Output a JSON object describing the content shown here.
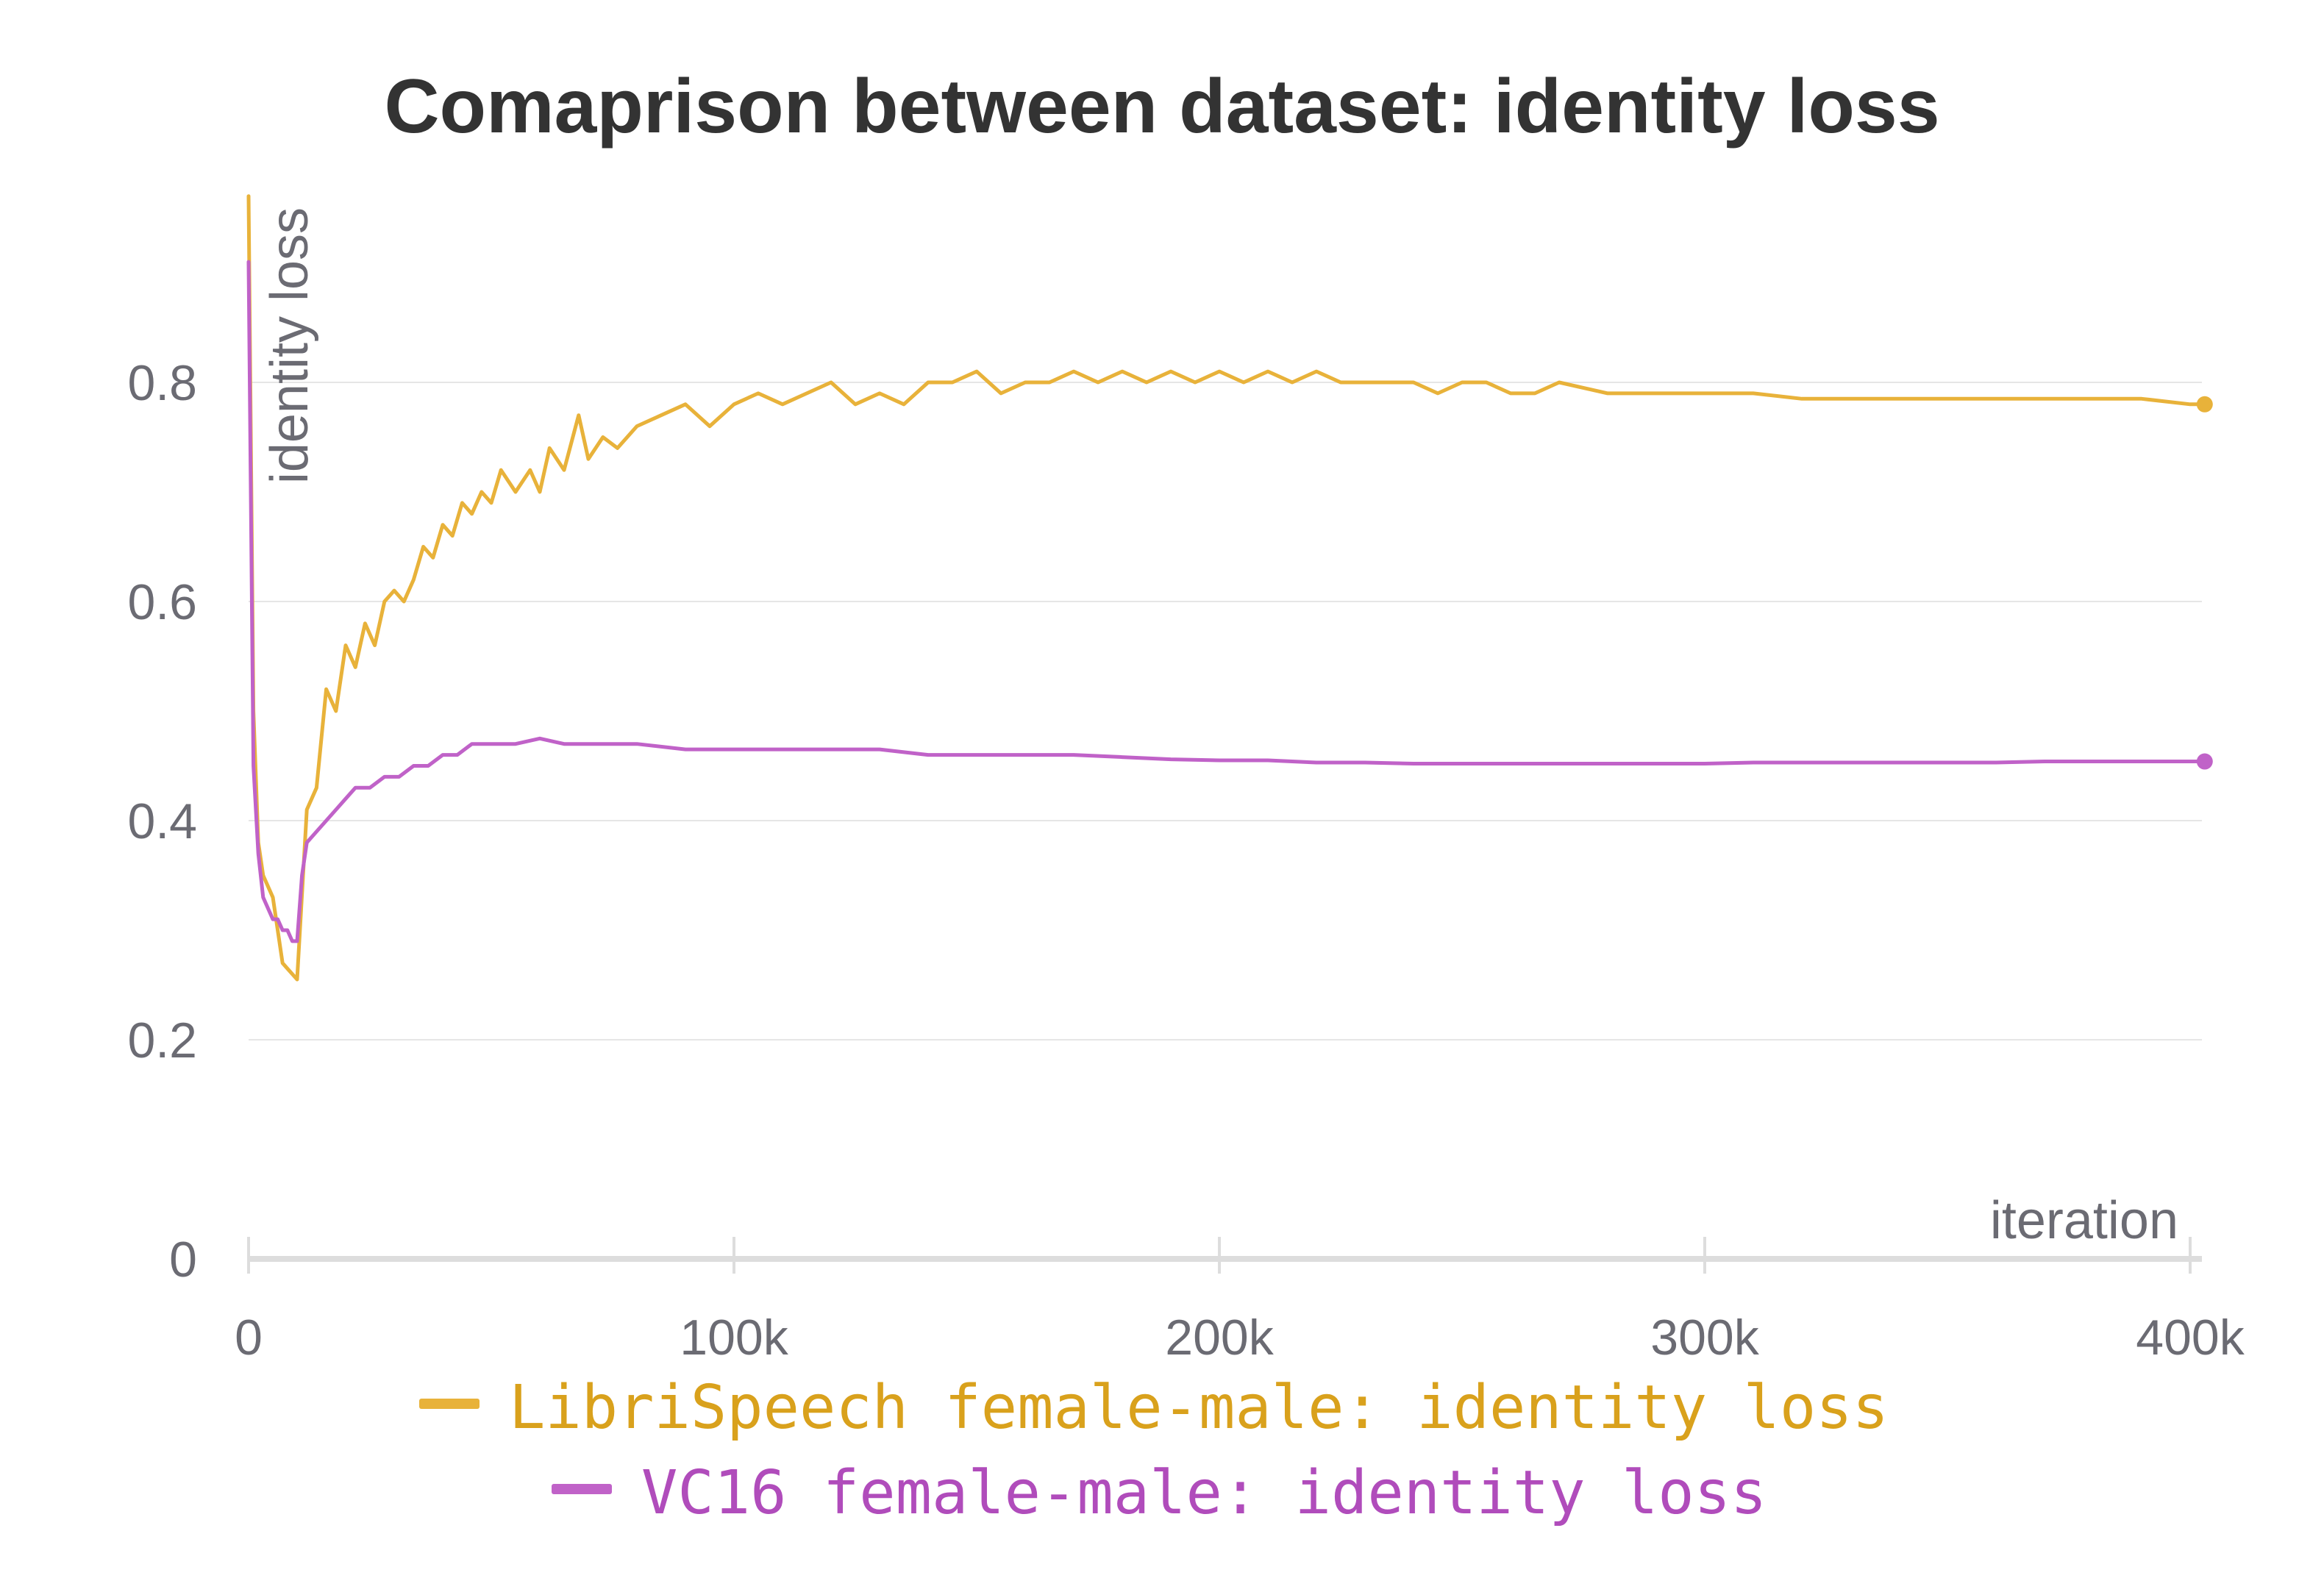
{
  "colors": {
    "librispeech": "#e8b23a",
    "vc16": "#c062c8",
    "librispeech_legend_text": "#d9a11c",
    "vc16_legend_text": "#b04cbb",
    "grid": "#e6e6e6",
    "axis": "#dddddd",
    "text": "#6b6b73",
    "title": "#333333"
  },
  "chart_data": {
    "type": "line",
    "title": "Comaprison between dataset: identity loss",
    "xlabel": "iteration",
    "ylabel": "identity loss",
    "xlim": [
      0,
      403000
    ],
    "ylim": [
      0,
      0.97
    ],
    "x_ticks": [
      0,
      100000,
      200000,
      300000,
      400000
    ],
    "x_tick_labels": [
      "0",
      "100k",
      "200k",
      "300k",
      "400k"
    ],
    "y_ticks": [
      0,
      0.2,
      0.4,
      0.6,
      0.8
    ],
    "y_tick_labels": [
      "0",
      "0.2",
      "0.4",
      "0.6",
      "0.8"
    ],
    "grid": true,
    "legend_position": "bottom-center",
    "series": [
      {
        "name": "LibriSpeech female-male: identity loss",
        "color": "#e8b23a",
        "x": [
          0,
          1000,
          2000,
          3000,
          5000,
          7000,
          8000,
          10000,
          12000,
          14000,
          16000,
          18000,
          20000,
          22000,
          24000,
          26000,
          28000,
          30000,
          32000,
          34000,
          36000,
          38000,
          40000,
          42000,
          44000,
          46000,
          48000,
          50000,
          52000,
          55000,
          58000,
          60000,
          62000,
          65000,
          68000,
          70000,
          73000,
          76000,
          80000,
          85000,
          90000,
          95000,
          100000,
          105000,
          110000,
          115000,
          120000,
          125000,
          130000,
          135000,
          140000,
          145000,
          150000,
          155000,
          160000,
          165000,
          170000,
          175000,
          180000,
          185000,
          190000,
          195000,
          200000,
          205000,
          210000,
          215000,
          220000,
          225000,
          230000,
          235000,
          240000,
          245000,
          250000,
          255000,
          260000,
          265000,
          270000,
          280000,
          290000,
          300000,
          310000,
          320000,
          330000,
          340000,
          350000,
          360000,
          370000,
          380000,
          390000,
          400000,
          403000
        ],
        "y": [
          0.97,
          0.5,
          0.38,
          0.35,
          0.33,
          0.27,
          0.265,
          0.255,
          0.41,
          0.43,
          0.52,
          0.5,
          0.56,
          0.54,
          0.58,
          0.56,
          0.6,
          0.61,
          0.6,
          0.62,
          0.65,
          0.64,
          0.67,
          0.66,
          0.69,
          0.68,
          0.7,
          0.69,
          0.72,
          0.7,
          0.72,
          0.7,
          0.74,
          0.72,
          0.77,
          0.73,
          0.75,
          0.74,
          0.76,
          0.77,
          0.78,
          0.76,
          0.78,
          0.79,
          0.78,
          0.79,
          0.8,
          0.78,
          0.79,
          0.78,
          0.8,
          0.8,
          0.81,
          0.79,
          0.8,
          0.8,
          0.81,
          0.8,
          0.81,
          0.8,
          0.81,
          0.8,
          0.81,
          0.8,
          0.81,
          0.8,
          0.81,
          0.8,
          0.8,
          0.8,
          0.8,
          0.79,
          0.8,
          0.8,
          0.79,
          0.79,
          0.8,
          0.79,
          0.79,
          0.79,
          0.79,
          0.785,
          0.785,
          0.785,
          0.785,
          0.785,
          0.785,
          0.785,
          0.785,
          0.78,
          0.78
        ]
      },
      {
        "name": "VC16 female-male: identity loss",
        "color": "#c062c8",
        "x": [
          0,
          1000,
          2000,
          3000,
          4000,
          5000,
          6000,
          7000,
          8000,
          9000,
          10000,
          11000,
          12000,
          14000,
          16000,
          18000,
          20000,
          22000,
          25000,
          28000,
          31000,
          34000,
          37000,
          40000,
          43000,
          46000,
          50000,
          55000,
          60000,
          65000,
          70000,
          80000,
          90000,
          100000,
          110000,
          120000,
          130000,
          140000,
          150000,
          160000,
          170000,
          180000,
          190000,
          200000,
          210000,
          220000,
          230000,
          240000,
          250000,
          260000,
          270000,
          280000,
          290000,
          300000,
          310000,
          320000,
          330000,
          340000,
          350000,
          360000,
          370000,
          380000,
          390000,
          400000,
          403000
        ],
        "y": [
          0.91,
          0.45,
          0.37,
          0.33,
          0.32,
          0.31,
          0.31,
          0.3,
          0.3,
          0.29,
          0.29,
          0.35,
          0.38,
          0.39,
          0.4,
          0.41,
          0.42,
          0.43,
          0.43,
          0.44,
          0.44,
          0.45,
          0.45,
          0.46,
          0.46,
          0.47,
          0.47,
          0.47,
          0.475,
          0.47,
          0.47,
          0.47,
          0.465,
          0.465,
          0.465,
          0.465,
          0.465,
          0.46,
          0.46,
          0.46,
          0.46,
          0.458,
          0.456,
          0.455,
          0.455,
          0.453,
          0.453,
          0.452,
          0.452,
          0.452,
          0.452,
          0.452,
          0.452,
          0.452,
          0.453,
          0.453,
          0.453,
          0.453,
          0.453,
          0.453,
          0.454,
          0.454,
          0.454,
          0.454,
          0.454
        ]
      }
    ]
  }
}
